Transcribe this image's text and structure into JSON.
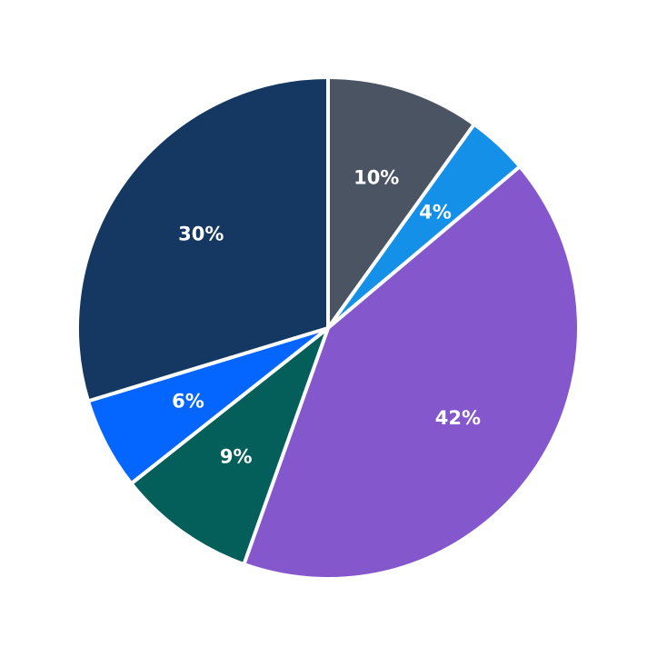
{
  "chart_data": {
    "type": "pie",
    "start": "top",
    "direction": "clockwise",
    "legend": "none",
    "slices": [
      {
        "value": 10,
        "label": "10%",
        "color": "#4a5463"
      },
      {
        "value": 4,
        "label": "4%",
        "color": "#1490e8"
      },
      {
        "value": 42,
        "label": "42%",
        "color": "#8557cc"
      },
      {
        "value": 9,
        "label": "9%",
        "color": "#045e5a"
      },
      {
        "value": 6,
        "label": "6%",
        "color": "#0565ff"
      },
      {
        "value": 30,
        "label": "30%",
        "color": "#143861"
      }
    ]
  }
}
